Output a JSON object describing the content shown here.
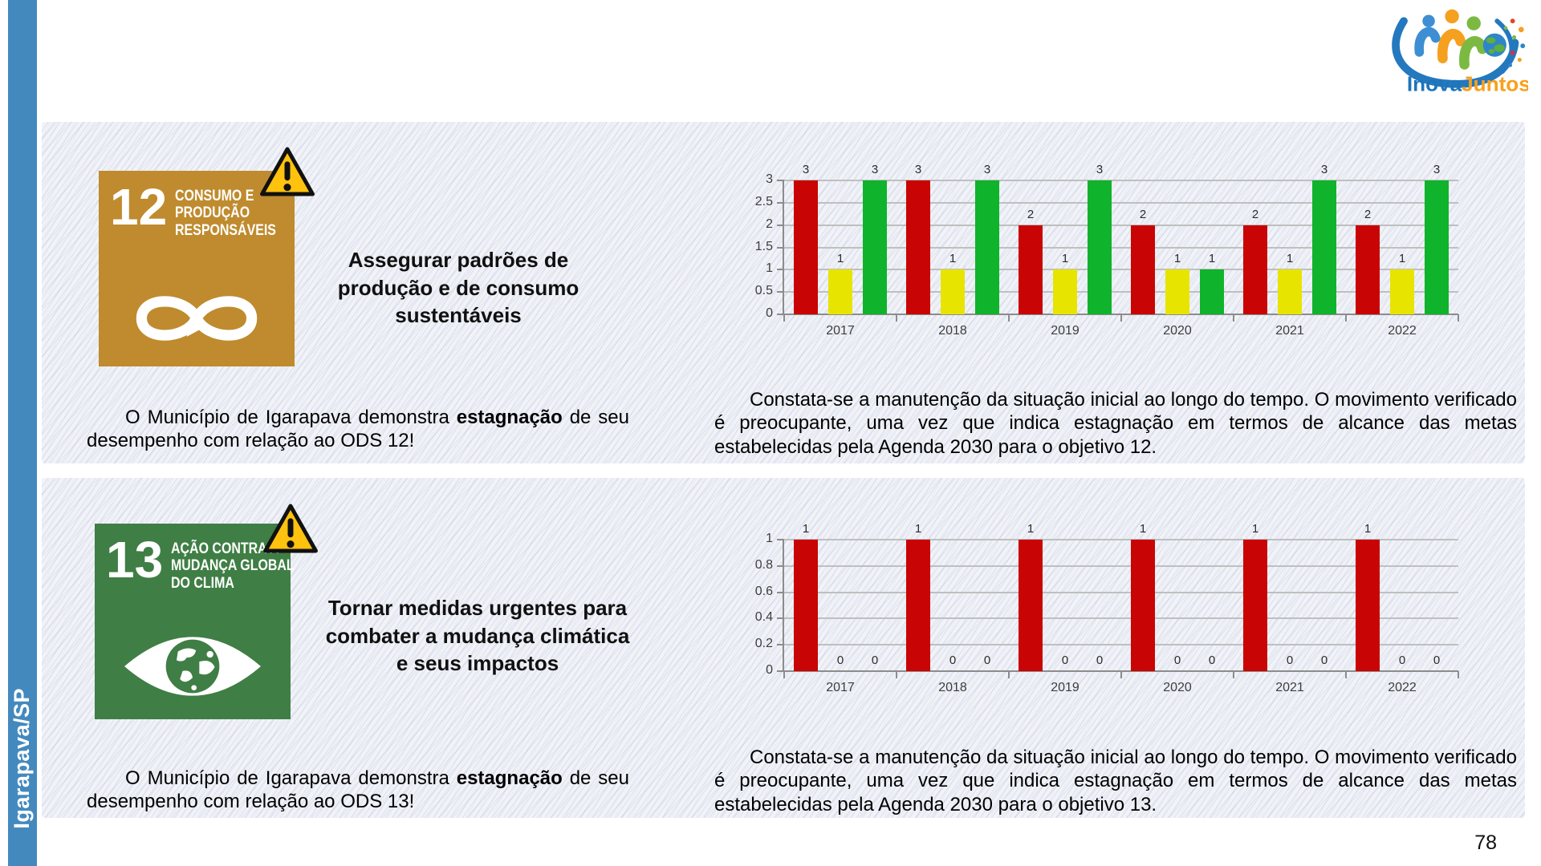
{
  "page": {
    "number": "78"
  },
  "sidebar": {
    "label": "Igarapava/SP",
    "color": "#4489BE"
  },
  "logo": {
    "inova": "Inova",
    "juntos": "Juntos",
    "inova_color": "#1C75BB",
    "juntos_color": "#F8A01D"
  },
  "panels": [
    {
      "badge": {
        "number": "12",
        "color": "#BF8B2E",
        "title_lines": [
          "CONSUMO E",
          "PRODUÇÃO",
          "RESPONSÁVEIS"
        ],
        "icon": "infinity-icon"
      },
      "warning_color": "#FFC20E",
      "goal_title": "Assegurar padrões de produção e de consumo sustentáveis",
      "left_text_parts": [
        "O Município de Igarapava demonstra ",
        "estagnação",
        " de seu desempenho com relação ao ODS 12!"
      ],
      "right_text": "Constata-se a manutenção da situação inicial ao longo do tempo. O movimento verificado é preocupante, uma vez que indica estagnação em termos de alcance das metas estabelecidas pela Agenda 2030 para o objetivo 12."
    },
    {
      "badge": {
        "number": "13",
        "color": "#3F7E44",
        "title_lines": [
          "AÇÃO CONTRA A",
          "MUDANÇA GLOBAL",
          "DO CLIMA"
        ],
        "icon": "globe-eye-icon"
      },
      "warning_color": "#FFC20E",
      "goal_title": "Tornar medidas urgentes para combater a mudança climática e seus impactos",
      "left_text_parts": [
        "O Município de Igarapava demonstra ",
        "estagnação",
        " de seu desempenho com relação ao ODS 13!"
      ],
      "right_text": "Constata-se a manutenção da situação inicial ao longo do tempo. O movimento verificado é preocupante, uma vez que indica estagnação em termos de alcance das metas estabelecidas pela Agenda 2030 para o objetivo 13."
    }
  ],
  "chart_data": [
    {
      "type": "bar",
      "title": "",
      "categories": [
        "2017",
        "2018",
        "2019",
        "2020",
        "2021",
        "2022"
      ],
      "series": [
        {
          "name": "vermelho",
          "color": "#C90404",
          "values": [
            3,
            3,
            2,
            2,
            2,
            2
          ]
        },
        {
          "name": "amarelo",
          "color": "#E7E400",
          "values": [
            1,
            1,
            1,
            1,
            1,
            1
          ]
        },
        {
          "name": "verde",
          "color": "#0FB32C",
          "values": [
            3,
            3,
            3,
            1,
            3,
            3
          ]
        }
      ],
      "ylim": [
        0,
        3
      ],
      "yticks": [
        0,
        0.5,
        1,
        1.5,
        2,
        2.5,
        3
      ],
      "ytick_labels": [
        "0",
        "0.5",
        "1",
        "1.5",
        "2",
        "2.5",
        "3"
      ],
      "grid": true,
      "legend": false,
      "data_labels": true
    },
    {
      "type": "bar",
      "title": "",
      "categories": [
        "2017",
        "2018",
        "2019",
        "2020",
        "2021",
        "2022"
      ],
      "series": [
        {
          "name": "vermelho",
          "color": "#C90404",
          "values": [
            1,
            1,
            1,
            1,
            1,
            1
          ]
        },
        {
          "name": "amarelo",
          "color": "#E7E400",
          "values": [
            0,
            0,
            0,
            0,
            0,
            0
          ]
        },
        {
          "name": "verde",
          "color": "#0FB32C",
          "values": [
            0,
            0,
            0,
            0,
            0,
            0
          ]
        }
      ],
      "ylim": [
        0,
        1
      ],
      "yticks": [
        0,
        0.2,
        0.4,
        0.6,
        0.8,
        1
      ],
      "ytick_labels": [
        "0",
        "0.2",
        "0.4",
        "0.6",
        "0.8",
        "1"
      ],
      "grid": true,
      "legend": false,
      "data_labels": true
    }
  ]
}
